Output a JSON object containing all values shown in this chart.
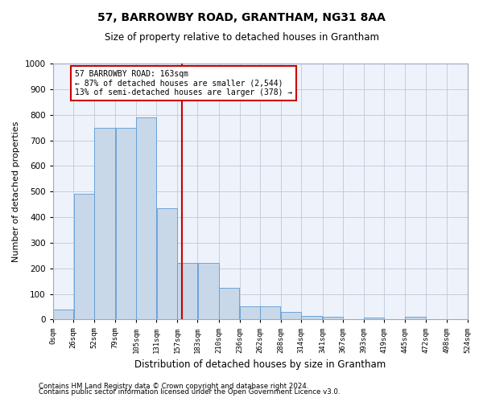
{
  "title": "57, BARROWBY ROAD, GRANTHAM, NG31 8AA",
  "subtitle": "Size of property relative to detached houses in Grantham",
  "xlabel": "Distribution of detached houses by size in Grantham",
  "ylabel": "Number of detached properties",
  "bar_color": "#c8d8e8",
  "bar_edge_color": "#5b9bd5",
  "background_color": "#eef2fb",
  "grid_color": "#c0c8d8",
  "vline_x": 163,
  "vline_color": "#cc0000",
  "annotation_line1": "57 BARROWBY ROAD: 163sqm",
  "annotation_line2": "← 87% of detached houses are smaller (2,544)",
  "annotation_line3": "13% of semi-detached houses are larger (378) →",
  "annotation_box_color": "#cc0000",
  "bin_edges": [
    0,
    26,
    52,
    79,
    105,
    131,
    157,
    183,
    210,
    236,
    262,
    288,
    314,
    341,
    367,
    393,
    419,
    445,
    472,
    498,
    524
  ],
  "bar_heights": [
    40,
    490,
    748,
    750,
    790,
    435,
    220,
    220,
    125,
    52,
    52,
    28,
    15,
    10,
    0,
    8,
    0,
    10,
    0,
    0
  ],
  "ylim": [
    0,
    1000
  ],
  "yticks": [
    0,
    100,
    200,
    300,
    400,
    500,
    600,
    700,
    800,
    900,
    1000
  ],
  "footnote1": "Contains HM Land Registry data © Crown copyright and database right 2024.",
  "footnote2": "Contains public sector information licensed under the Open Government Licence v3.0."
}
